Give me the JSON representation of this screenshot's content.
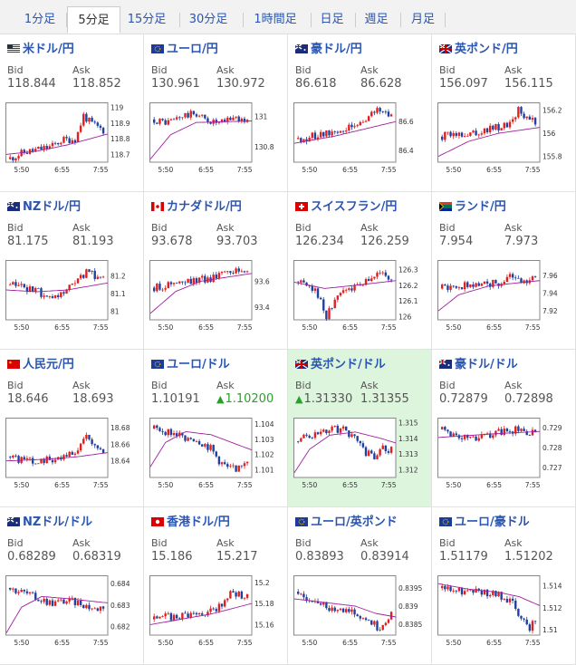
{
  "tabs": [
    {
      "label": "1分足",
      "active": false
    },
    {
      "label": "5分足",
      "active": true
    },
    {
      "label": "15分足",
      "active": false
    },
    {
      "label": "30分足",
      "active": false
    },
    {
      "label": "1時間足",
      "active": false
    },
    {
      "label": "日足",
      "active": false
    },
    {
      "label": "週足",
      "active": false
    },
    {
      "label": "月足",
      "active": false
    }
  ],
  "bid_label": "Bid",
  "ask_label": "Ask",
  "colors": {
    "up": "#e02020",
    "down": "#2040a0",
    "ma": "#a020a0",
    "link": "#2a55b0",
    "highlight": "#ddf5dd"
  },
  "chart_data": [
    {
      "type": "candlestick",
      "title": "米ドル/円",
      "flags": [
        "us",
        "jp"
      ],
      "bid": "118.844",
      "ask": "118.852",
      "x_ticks": [
        "5:50",
        "6:55",
        "7:55"
      ],
      "y_ticks": [
        "119",
        "118.9",
        "118.8",
        "118.7"
      ],
      "ylim": [
        118.65,
        119.02
      ],
      "trend": [
        [
          0,
          118.67
        ],
        [
          0.15,
          118.71
        ],
        [
          0.3,
          118.73
        ],
        [
          0.45,
          118.75
        ],
        [
          0.55,
          118.79
        ],
        [
          0.7,
          118.8
        ],
        [
          0.78,
          118.95
        ],
        [
          0.85,
          118.9
        ],
        [
          1,
          118.85
        ]
      ],
      "ma": [
        [
          0,
          118.7
        ],
        [
          0.3,
          118.72
        ],
        [
          0.6,
          118.76
        ],
        [
          1,
          118.83
        ]
      ]
    },
    {
      "type": "candlestick",
      "title": "ユーロ/円",
      "flags": [
        "eu",
        "jp"
      ],
      "bid": "130.961",
      "ask": "130.972",
      "x_ticks": [
        "5:50",
        "6:55",
        "7:55"
      ],
      "y_ticks": [
        "131",
        "130.8"
      ],
      "ylim": [
        130.7,
        131.08
      ],
      "trend": [
        [
          0,
          130.98
        ],
        [
          0.15,
          130.96
        ],
        [
          0.3,
          131.0
        ],
        [
          0.45,
          131.02
        ],
        [
          0.55,
          130.98
        ],
        [
          0.7,
          130.95
        ],
        [
          0.85,
          131.0
        ],
        [
          1,
          130.96
        ]
      ],
      "ma": [
        [
          0,
          130.72
        ],
        [
          0.2,
          130.88
        ],
        [
          0.45,
          130.96
        ],
        [
          1,
          130.97
        ]
      ]
    },
    {
      "type": "candlestick",
      "title": "豪ドル/円",
      "flags": [
        "au",
        "jp"
      ],
      "bid": "86.618",
      "ask": "86.628",
      "x_ticks": [
        "5:50",
        "6:55",
        "7:55"
      ],
      "y_ticks": [
        "86.6",
        "86.4"
      ],
      "ylim": [
        86.32,
        86.72
      ],
      "trend": [
        [
          0,
          86.48
        ],
        [
          0.2,
          86.5
        ],
        [
          0.4,
          86.53
        ],
        [
          0.6,
          86.56
        ],
        [
          0.75,
          86.63
        ],
        [
          0.85,
          86.68
        ],
        [
          1,
          86.65
        ]
      ],
      "ma": [
        [
          0,
          86.45
        ],
        [
          0.4,
          86.5
        ],
        [
          0.7,
          86.55
        ],
        [
          1,
          86.6
        ]
      ]
    },
    {
      "type": "candlestick",
      "title": "英ポンド/円",
      "flags": [
        "gb",
        "jp"
      ],
      "bid": "156.097",
      "ask": "156.115",
      "x_ticks": [
        "5:50",
        "6:55",
        "7:55"
      ],
      "y_ticks": [
        "156.2",
        "156",
        "155.8"
      ],
      "ylim": [
        155.75,
        156.25
      ],
      "trend": [
        [
          0,
          155.97
        ],
        [
          0.2,
          156.0
        ],
        [
          0.4,
          156.02
        ],
        [
          0.6,
          156.05
        ],
        [
          0.75,
          156.1
        ],
        [
          0.8,
          156.22
        ],
        [
          0.9,
          156.12
        ],
        [
          1,
          156.1
        ]
      ],
      "ma": [
        [
          0,
          155.8
        ],
        [
          0.3,
          155.93
        ],
        [
          0.6,
          156.0
        ],
        [
          1,
          156.05
        ]
      ]
    },
    {
      "type": "candlestick",
      "title": "NZドル/円",
      "flags": [
        "nz",
        "jp"
      ],
      "bid": "81.175",
      "ask": "81.193",
      "x_ticks": [
        "5:50",
        "6:55",
        "7:55"
      ],
      "y_ticks": [
        "81.2",
        "81.1",
        "81"
      ],
      "ylim": [
        80.95,
        81.28
      ],
      "trend": [
        [
          0,
          81.15
        ],
        [
          0.2,
          81.13
        ],
        [
          0.35,
          81.1
        ],
        [
          0.45,
          81.05
        ],
        [
          0.55,
          81.1
        ],
        [
          0.7,
          81.15
        ],
        [
          0.8,
          81.22
        ],
        [
          0.9,
          81.2
        ],
        [
          1,
          81.18
        ]
      ],
      "ma": [
        [
          0,
          81.12
        ],
        [
          0.3,
          81.11
        ],
        [
          0.6,
          81.12
        ],
        [
          1,
          81.16
        ]
      ]
    },
    {
      "type": "candlestick",
      "title": "カナダドル/円",
      "flags": [
        "ca",
        "jp"
      ],
      "bid": "93.678",
      "ask": "93.703",
      "x_ticks": [
        "5:50",
        "6:55",
        "7:55"
      ],
      "y_ticks": [
        "93.6",
        "93.4"
      ],
      "ylim": [
        93.3,
        93.75
      ],
      "trend": [
        [
          0,
          93.55
        ],
        [
          0.2,
          93.58
        ],
        [
          0.4,
          93.6
        ],
        [
          0.6,
          93.62
        ],
        [
          0.75,
          93.7
        ],
        [
          0.85,
          93.68
        ],
        [
          1,
          93.68
        ]
      ],
      "ma": [
        [
          0,
          93.35
        ],
        [
          0.25,
          93.52
        ],
        [
          0.5,
          93.6
        ],
        [
          1,
          93.66
        ]
      ]
    },
    {
      "type": "candlestick",
      "title": "スイスフラン/円",
      "flags": [
        "ch",
        "jp"
      ],
      "bid": "126.234",
      "ask": "126.259",
      "x_ticks": [
        "5:50",
        "6:55",
        "7:55"
      ],
      "y_ticks": [
        "126.3",
        "126.2",
        "126.1",
        "126"
      ],
      "ylim": [
        125.98,
        126.35
      ],
      "trend": [
        [
          0,
          126.22
        ],
        [
          0.15,
          126.2
        ],
        [
          0.25,
          126.1
        ],
        [
          0.3,
          126.0
        ],
        [
          0.45,
          126.15
        ],
        [
          0.6,
          126.2
        ],
        [
          0.75,
          126.24
        ],
        [
          0.85,
          126.28
        ],
        [
          1,
          126.25
        ]
      ],
      "ma": [
        [
          0,
          126.22
        ],
        [
          0.3,
          126.18
        ],
        [
          0.6,
          126.2
        ],
        [
          1,
          126.23
        ]
      ]
    },
    {
      "type": "candlestick",
      "title": "ランド/円",
      "flags": [
        "za",
        "jp"
      ],
      "bid": "7.954",
      "ask": "7.973",
      "x_ticks": [
        "5:50",
        "6:55",
        "7:55"
      ],
      "y_ticks": [
        "7.96",
        "7.94",
        "7.92"
      ],
      "ylim": [
        7.91,
        7.975
      ],
      "trend": [
        [
          0,
          7.945
        ],
        [
          0.2,
          7.948
        ],
        [
          0.4,
          7.95
        ],
        [
          0.6,
          7.952
        ],
        [
          0.75,
          7.958
        ],
        [
          0.85,
          7.955
        ],
        [
          1,
          7.956
        ]
      ],
      "ma": [
        [
          0,
          7.92
        ],
        [
          0.2,
          7.938
        ],
        [
          0.5,
          7.948
        ],
        [
          1,
          7.954
        ]
      ]
    },
    {
      "type": "candlestick",
      "title": "人民元/円",
      "flags": [
        "cn",
        "jp"
      ],
      "bid": "18.646",
      "ask": "18.693",
      "x_ticks": [
        "5:50",
        "6:55",
        "7:55"
      ],
      "y_ticks": [
        "18.68",
        "18.66",
        "18.64"
      ],
      "ylim": [
        18.62,
        18.69
      ],
      "trend": [
        [
          0,
          18.645
        ],
        [
          0.2,
          18.64
        ],
        [
          0.4,
          18.642
        ],
        [
          0.6,
          18.645
        ],
        [
          0.7,
          18.65
        ],
        [
          0.8,
          18.67
        ],
        [
          0.9,
          18.66
        ],
        [
          1,
          18.648
        ]
      ],
      "ma": [
        [
          0,
          18.64
        ],
        [
          0.4,
          18.642
        ],
        [
          0.7,
          18.645
        ],
        [
          1,
          18.65
        ]
      ]
    },
    {
      "type": "candlestick",
      "title": "ユーロ/ドル",
      "flags": [
        "eu",
        "us"
      ],
      "bid": "1.10191",
      "ask": "1.10200",
      "ask_up": true,
      "x_ticks": [
        "5:50",
        "6:55",
        "7:55"
      ],
      "y_ticks": [
        "1.104",
        "1.103",
        "1.102",
        "1.101"
      ],
      "ylim": [
        1.1005,
        1.1043
      ],
      "trend": [
        [
          0,
          1.1037
        ],
        [
          0.15,
          1.1035
        ],
        [
          0.3,
          1.1032
        ],
        [
          0.45,
          1.103
        ],
        [
          0.6,
          1.1024
        ],
        [
          0.7,
          1.1015
        ],
        [
          0.8,
          1.101
        ],
        [
          0.9,
          1.1012
        ],
        [
          1,
          1.1018
        ]
      ],
      "ma": [
        [
          0,
          1.1012
        ],
        [
          0.15,
          1.1028
        ],
        [
          0.35,
          1.1035
        ],
        [
          0.6,
          1.1033
        ],
        [
          0.8,
          1.1028
        ],
        [
          1,
          1.1023
        ]
      ]
    },
    {
      "type": "candlestick",
      "title": "英ポンド/ドル",
      "flags": [
        "gb",
        "us"
      ],
      "bid": "1.31330",
      "ask": "1.31355",
      "bid_up": true,
      "highlight": true,
      "x_ticks": [
        "5:50",
        "6:55",
        "7:55"
      ],
      "y_ticks": [
        "1.315",
        "1.314",
        "1.313",
        "1.312"
      ],
      "ylim": [
        1.3115,
        1.3152
      ],
      "trend": [
        [
          0,
          1.3138
        ],
        [
          0.15,
          1.3142
        ],
        [
          0.3,
          1.3145
        ],
        [
          0.45,
          1.3146
        ],
        [
          0.6,
          1.3142
        ],
        [
          0.7,
          1.3132
        ],
        [
          0.8,
          1.3128
        ],
        [
          0.9,
          1.3133
        ],
        [
          1,
          1.3133
        ]
      ],
      "ma": [
        [
          0,
          1.3118
        ],
        [
          0.15,
          1.3133
        ],
        [
          0.35,
          1.3142
        ],
        [
          0.6,
          1.3144
        ],
        [
          0.85,
          1.314
        ],
        [
          1,
          1.3137
        ]
      ]
    },
    {
      "type": "candlestick",
      "title": "豪ドル/ドル",
      "flags": [
        "au",
        "us"
      ],
      "bid": "0.72879",
      "ask": "0.72898",
      "x_ticks": [
        "5:50",
        "6:55",
        "7:55"
      ],
      "y_ticks": [
        "0.729",
        "0.728",
        "0.727"
      ],
      "ylim": [
        0.7265,
        0.7294
      ],
      "trend": [
        [
          0,
          0.7289
        ],
        [
          0.2,
          0.7286
        ],
        [
          0.35,
          0.7284
        ],
        [
          0.5,
          0.7286
        ],
        [
          0.65,
          0.7288
        ],
        [
          0.8,
          0.7289
        ],
        [
          0.9,
          0.7287
        ],
        [
          1,
          0.7288
        ]
      ],
      "ma": [
        [
          0,
          0.7285
        ],
        [
          0.3,
          0.7286
        ],
        [
          0.6,
          0.7287
        ],
        [
          1,
          0.7288
        ]
      ]
    },
    {
      "type": "candlestick",
      "title": "NZドル/ドル",
      "flags": [
        "nz",
        "us"
      ],
      "bid": "0.68289",
      "ask": "0.68319",
      "x_ticks": [
        "5:50",
        "6:55",
        "7:55"
      ],
      "y_ticks": [
        "0.684",
        "0.683",
        "0.682"
      ],
      "ylim": [
        0.6816,
        0.6843
      ],
      "trend": [
        [
          0,
          0.6838
        ],
        [
          0.15,
          0.6836
        ],
        [
          0.3,
          0.6833
        ],
        [
          0.45,
          0.6831
        ],
        [
          0.6,
          0.6832
        ],
        [
          0.75,
          0.6831
        ],
        [
          0.9,
          0.6828
        ],
        [
          1,
          0.683
        ]
      ],
      "ma": [
        [
          0,
          0.6817
        ],
        [
          0.15,
          0.6829
        ],
        [
          0.35,
          0.6834
        ],
        [
          0.6,
          0.6833
        ],
        [
          1,
          0.6831
        ]
      ]
    },
    {
      "type": "candlestick",
      "title": "香港ドル/円",
      "flags": [
        "hk",
        "jp"
      ],
      "bid": "15.186",
      "ask": "15.217",
      "x_ticks": [
        "5:50",
        "6:55",
        "7:55"
      ],
      "y_ticks": [
        "15.2",
        "15.18",
        "15.16"
      ],
      "ylim": [
        15.15,
        15.205
      ],
      "trend": [
        [
          0,
          15.165
        ],
        [
          0.2,
          15.168
        ],
        [
          0.4,
          15.17
        ],
        [
          0.6,
          15.172
        ],
        [
          0.7,
          15.178
        ],
        [
          0.8,
          15.19
        ],
        [
          0.9,
          15.188
        ],
        [
          1,
          15.186
        ]
      ],
      "ma": [
        [
          0,
          15.16
        ],
        [
          0.3,
          15.165
        ],
        [
          0.6,
          15.17
        ],
        [
          1,
          15.18
        ]
      ]
    },
    {
      "type": "candlestick",
      "title": "ユーロ/英ポンド",
      "flags": [
        "eu",
        "gb"
      ],
      "bid": "0.83893",
      "ask": "0.83914",
      "x_ticks": [
        "5:50",
        "6:55",
        "7:55"
      ],
      "y_ticks": [
        "0.8395",
        "0.839",
        "0.8385"
      ],
      "ylim": [
        0.8382,
        0.8398
      ],
      "trend": [
        [
          0,
          0.8394
        ],
        [
          0.15,
          0.8392
        ],
        [
          0.3,
          0.839
        ],
        [
          0.45,
          0.8389
        ],
        [
          0.6,
          0.8388
        ],
        [
          0.75,
          0.8386
        ],
        [
          0.85,
          0.8384
        ],
        [
          0.92,
          0.8386
        ],
        [
          1,
          0.8389
        ]
      ],
      "ma": [
        [
          0,
          0.8392
        ],
        [
          0.3,
          0.8391
        ],
        [
          0.6,
          0.839
        ],
        [
          0.8,
          0.8388
        ],
        [
          1,
          0.8387
        ]
      ]
    },
    {
      "type": "candlestick",
      "title": "ユーロ/豪ドル",
      "flags": [
        "eu",
        "au"
      ],
      "bid": "1.51179",
      "ask": "1.51202",
      "x_ticks": [
        "5:50",
        "6:55",
        "7:55"
      ],
      "y_ticks": [
        "1.514",
        "1.512",
        "1.51"
      ],
      "ylim": [
        1.5095,
        1.5148
      ],
      "trend": [
        [
          0,
          1.5138
        ],
        [
          0.2,
          1.5135
        ],
        [
          0.4,
          1.5134
        ],
        [
          0.6,
          1.5132
        ],
        [
          0.75,
          1.5125
        ],
        [
          0.85,
          1.5108
        ],
        [
          0.93,
          1.5102
        ],
        [
          1,
          1.5112
        ]
      ],
      "ma": [
        [
          0,
          1.5142
        ],
        [
          0.3,
          1.5137
        ],
        [
          0.6,
          1.5134
        ],
        [
          0.8,
          1.513
        ],
        [
          1,
          1.5122
        ]
      ]
    }
  ]
}
